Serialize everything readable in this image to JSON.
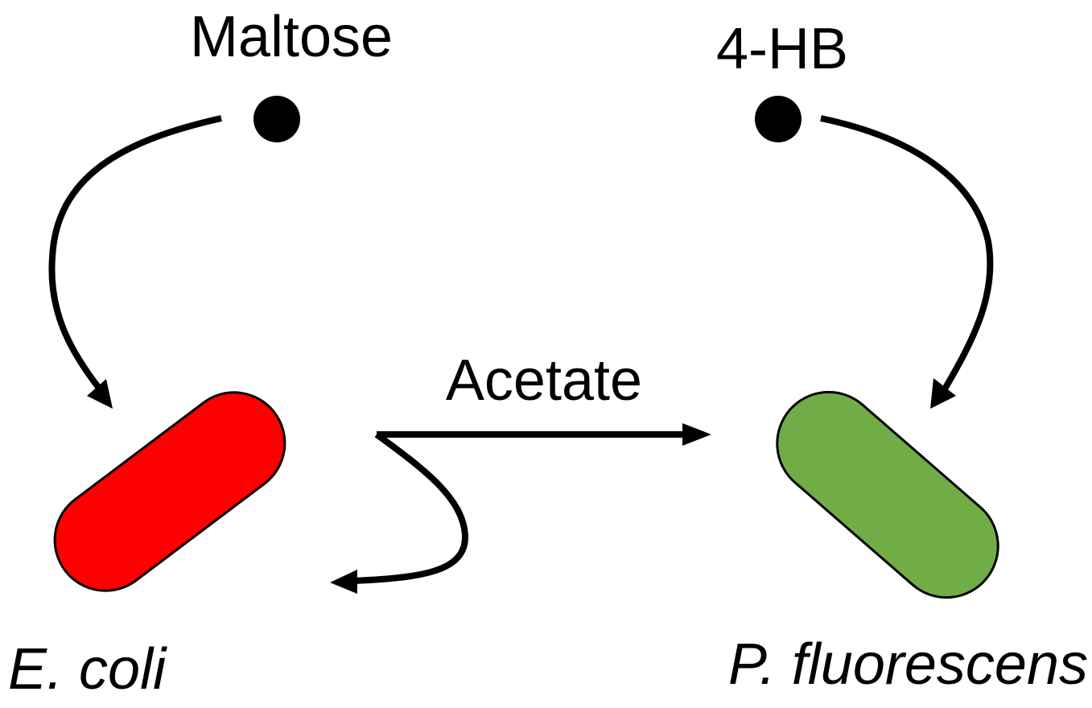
{
  "substrates": {
    "maltose": "Maltose",
    "hb": "4-HB"
  },
  "organisms": {
    "ecoli": {
      "name": "E. coli",
      "color": "#ff0000"
    },
    "pfluorescens": {
      "name": "P. fluorescens",
      "color": "#70ad47"
    }
  },
  "exchange": {
    "metabolite": "Acetate"
  },
  "colors": {
    "ink": "#000000",
    "background": "#ffffff"
  }
}
